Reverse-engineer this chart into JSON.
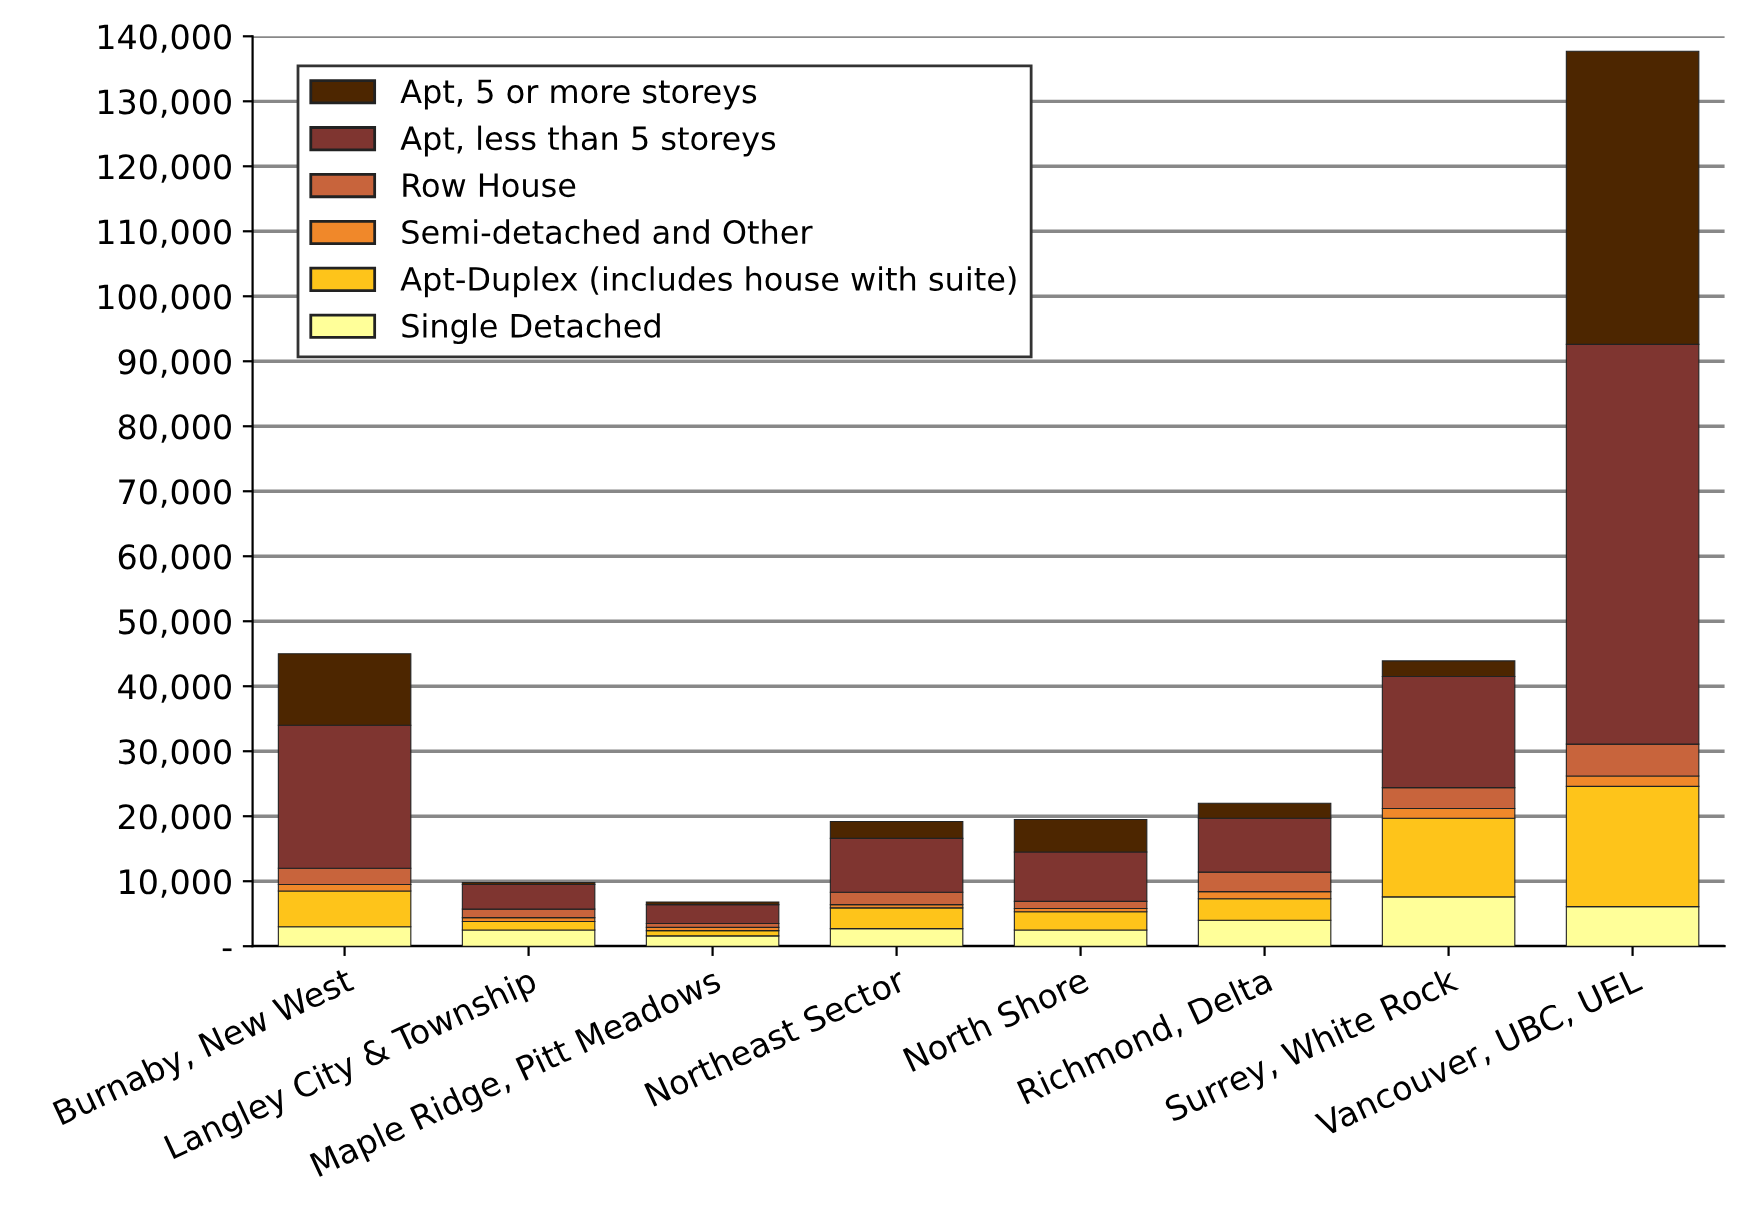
{
  "chart_data": {
    "type": "bar",
    "stacked": true,
    "categories": [
      "Burnaby, New West",
      "Langley City & Township",
      "Maple Ridge, Pitt Meadows",
      "Northeast Sector",
      "North Shore",
      "Richmond, Delta",
      "Surrey, White Rock",
      "Vancouver, UBC, UEL"
    ],
    "series": [
      {
        "name": "Single Detached",
        "color": "#ffff99",
        "values": [
          3000,
          2500,
          1600,
          2700,
          2500,
          4000,
          7600,
          6100
        ]
      },
      {
        "name": "Apt-Duplex (includes house with suite)",
        "color": "#fec41a",
        "values": [
          5500,
          1300,
          800,
          3200,
          2800,
          3300,
          12100,
          18500
        ]
      },
      {
        "name": "Semi-detached and Other",
        "color": "#f0882a",
        "values": [
          1000,
          600,
          500,
          500,
          500,
          1100,
          1500,
          1600
        ]
      },
      {
        "name": "Row House",
        "color": "#c8643c",
        "values": [
          2500,
          1300,
          600,
          1900,
          1100,
          3000,
          3200,
          4900
        ]
      },
      {
        "name": "Apt, less than 5 storeys",
        "color": "#7f3530",
        "values": [
          22000,
          3800,
          2900,
          8300,
          7600,
          8300,
          17100,
          61500
        ]
      },
      {
        "name": "Apt, 5 or more storeys",
        "color": "#4d2600",
        "values": [
          11000,
          300,
          400,
          2600,
          5000,
          2300,
          2400,
          45100
        ]
      }
    ],
    "ylim": [
      0,
      140000
    ],
    "yticks": [
      {
        "value": 0,
        "label": "-"
      },
      {
        "value": 10000,
        "label": "10,000"
      },
      {
        "value": 20000,
        "label": "20,000"
      },
      {
        "value": 30000,
        "label": "30,000"
      },
      {
        "value": 40000,
        "label": "40,000"
      },
      {
        "value": 50000,
        "label": "50,000"
      },
      {
        "value": 60000,
        "label": "60,000"
      },
      {
        "value": 70000,
        "label": "70,000"
      },
      {
        "value": 80000,
        "label": "80,000"
      },
      {
        "value": 90000,
        "label": "90,000"
      },
      {
        "value": 100000,
        "label": "100,000"
      },
      {
        "value": 110000,
        "label": "110,000"
      },
      {
        "value": 120000,
        "label": "120,000"
      },
      {
        "value": 130000,
        "label": "130,000"
      },
      {
        "value": 140000,
        "label": "140,000"
      }
    ],
    "grid": "y",
    "legend": "top left"
  }
}
